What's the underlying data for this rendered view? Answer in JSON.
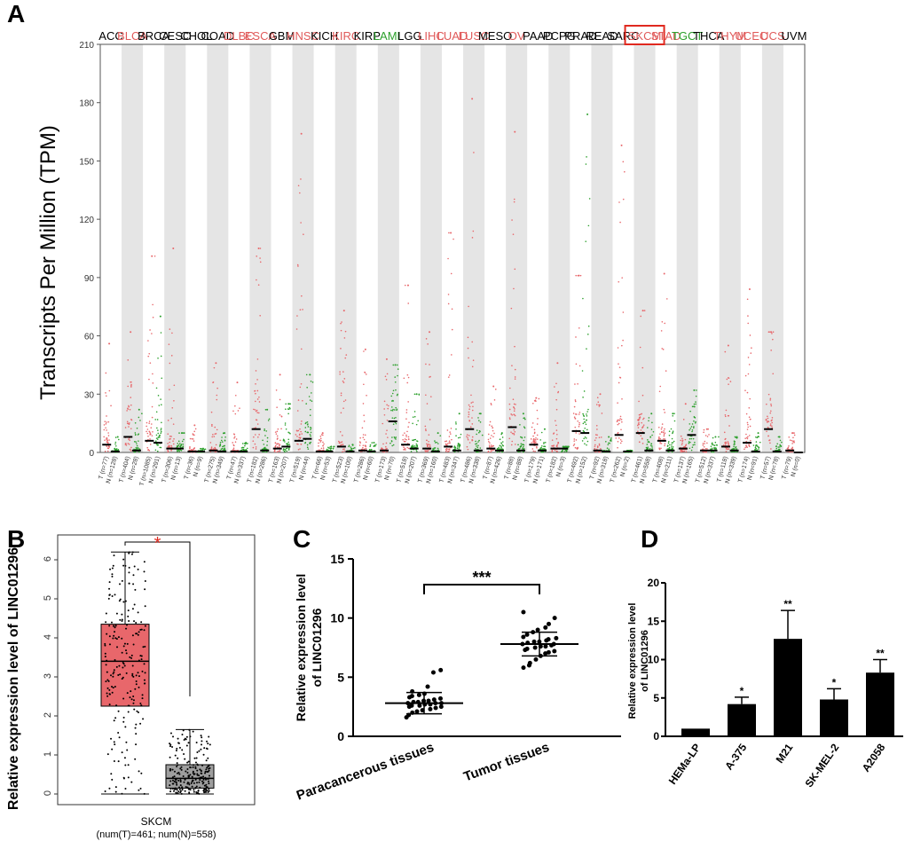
{
  "figure": {
    "panel_labels": [
      "A",
      "B",
      "C",
      "D"
    ]
  },
  "colors": {
    "tumor": "#e8676b",
    "normal": "#2ca02c",
    "text_red": "#e05a5a",
    "text_green": "#2ca02c",
    "text_black": "#000000",
    "stripe": "#e5e5e5",
    "bar": "#000000",
    "box_tumor": "#e8676b",
    "box_normal": "#9e9e9e",
    "star_red": "#e0291f",
    "highlight": "#e0291f"
  },
  "chart_data": [
    {
      "panel": "A",
      "type": "scatter",
      "ylabel": "Transcripts Per Million (TPM)",
      "ylim": [
        0,
        210
      ],
      "yticks": [
        0,
        30,
        60,
        90,
        120,
        150,
        180,
        210
      ],
      "highlight": "SKCM",
      "cancers": [
        {
          "name": "ACC",
          "color": "black",
          "tumor_n": "T (n=77)",
          "normal_n": "N (n=128)",
          "tumor_median": 4,
          "normal_median": 0.5,
          "tumor_max": 56,
          "normal_max": 8
        },
        {
          "name": "BLCA",
          "color": "red",
          "tumor_n": "T (n=404)",
          "normal_n": "N (n=28)",
          "tumor_median": 8,
          "normal_median": 1,
          "tumor_max": 62,
          "normal_max": 22
        },
        {
          "name": "BRCA",
          "color": "black",
          "tumor_n": "T (n=1085)",
          "normal_n": "N (n=291)",
          "tumor_median": 6,
          "normal_median": 5,
          "tumor_max": 101,
          "normal_max": 70
        },
        {
          "name": "CESC",
          "color": "black",
          "tumor_n": "T (n=306)",
          "normal_n": "N (n=13)",
          "tumor_median": 2,
          "normal_median": 2,
          "tumor_max": 105,
          "normal_max": 10
        },
        {
          "name": "CHOL",
          "color": "black",
          "tumor_n": "T (n=36)",
          "normal_n": "N (n=9)",
          "tumor_median": 0.5,
          "normal_median": 0.5,
          "tumor_max": 14,
          "normal_max": 2
        },
        {
          "name": "COAD",
          "color": "black",
          "tumor_n": "T (n=275)",
          "normal_n": "N (n=349)",
          "tumor_median": 1,
          "normal_median": 0.5,
          "tumor_max": 46,
          "normal_max": 10
        },
        {
          "name": "DLBC",
          "color": "red",
          "tumor_n": "T (n=47)",
          "normal_n": "N (n=337)",
          "tumor_median": 0.5,
          "normal_median": 0.5,
          "tumor_max": 36,
          "normal_max": 5
        },
        {
          "name": "ESCA",
          "color": "red",
          "tumor_n": "T (n=182)",
          "normal_n": "N (n=286)",
          "tumor_median": 12,
          "normal_median": 1,
          "tumor_max": 105,
          "normal_max": 22
        },
        {
          "name": "GBM",
          "color": "black",
          "tumor_n": "T (n=163)",
          "normal_n": "N (n=207)",
          "tumor_median": 2,
          "normal_median": 3,
          "tumor_max": 40,
          "normal_max": 25
        },
        {
          "name": "HNSC",
          "color": "red",
          "tumor_n": "T (n=519)",
          "normal_n": "N (n=44)",
          "tumor_median": 6,
          "normal_median": 7,
          "tumor_max": 164,
          "normal_max": 40
        },
        {
          "name": "KICH",
          "color": "black",
          "tumor_n": "T (n=66)",
          "normal_n": "N (n=53)",
          "tumor_median": 0.5,
          "normal_median": 0.5,
          "tumor_max": 10,
          "normal_max": 3
        },
        {
          "name": "KIRC",
          "color": "red",
          "tumor_n": "T (n=523)",
          "normal_n": "N (n=100)",
          "tumor_median": 3,
          "normal_median": 0.5,
          "tumor_max": 73,
          "normal_max": 4
        },
        {
          "name": "KIRP",
          "color": "black",
          "tumor_n": "T (n=286)",
          "normal_n": "N (n=60)",
          "tumor_median": 1,
          "normal_median": 0.5,
          "tumor_max": 53,
          "normal_max": 5
        },
        {
          "name": "LAML",
          "color": "green",
          "tumor_n": "T (n=173)",
          "normal_n": "N (n=70)",
          "tumor_median": 1,
          "normal_median": 16,
          "tumor_max": 48,
          "normal_max": 45
        },
        {
          "name": "LGG",
          "color": "black",
          "tumor_n": "T (n=518)",
          "normal_n": "N (n=207)",
          "tumor_median": 4,
          "normal_median": 2,
          "tumor_max": 86,
          "normal_max": 30
        },
        {
          "name": "LIHC",
          "color": "red",
          "tumor_n": "T (n=369)",
          "normal_n": "N (n=160)",
          "tumor_median": 2,
          "normal_median": 0.5,
          "tumor_max": 62,
          "normal_max": 10
        },
        {
          "name": "LUAD",
          "color": "red",
          "tumor_n": "T (n=483)",
          "normal_n": "N (n=347)",
          "tumor_median": 3,
          "normal_median": 1,
          "tumor_max": 113,
          "normal_max": 20
        },
        {
          "name": "LUSC",
          "color": "red",
          "tumor_n": "T (n=486)",
          "normal_n": "N (n=338)",
          "tumor_median": 12,
          "normal_median": 1,
          "tumor_max": 182,
          "normal_max": 20
        },
        {
          "name": "MESO",
          "color": "black",
          "tumor_n": "T (n=87)",
          "normal_n": "N (n=426)",
          "tumor_median": 2,
          "normal_median": 1,
          "tumor_max": 34,
          "normal_max": 10
        },
        {
          "name": "OV",
          "color": "red",
          "tumor_n": "T (n=88)",
          "normal_n": "N (n=88)",
          "tumor_median": 13,
          "normal_median": 1,
          "tumor_max": 165,
          "normal_max": 20
        },
        {
          "name": "PAAD",
          "color": "black",
          "tumor_n": "T (n=179)",
          "normal_n": "N (n=171)",
          "tumor_median": 4,
          "normal_median": 1,
          "tumor_max": 28,
          "normal_max": 12
        },
        {
          "name": "PCPG",
          "color": "black",
          "tumor_n": "T (n=182)",
          "normal_n": "N (n=3)",
          "tumor_median": 2,
          "normal_median": 2,
          "tumor_max": 46,
          "normal_max": 3
        },
        {
          "name": "PRAD",
          "color": "black",
          "tumor_n": "T (n=492)",
          "normal_n": "N (n=152)",
          "tumor_median": 11,
          "normal_median": 10,
          "tumor_max": 91,
          "normal_max": 174
        },
        {
          "name": "READ",
          "color": "black",
          "tumor_n": "T (n=92)",
          "normal_n": "N (n=318)",
          "tumor_median": 1,
          "normal_median": 0.5,
          "tumor_max": 30,
          "normal_max": 8
        },
        {
          "name": "SARC",
          "color": "black",
          "tumor_n": "T (n=262)",
          "normal_n": "N (n=2)",
          "tumor_median": 9,
          "normal_median": 0.5,
          "tumor_max": 158,
          "normal_max": 1
        },
        {
          "name": "SKCM",
          "color": "red",
          "tumor_n": "T (n=461)",
          "normal_n": "N (n=558)",
          "tumor_median": 10,
          "normal_median": 1,
          "tumor_max": 73,
          "normal_max": 20
        },
        {
          "name": "STAD",
          "color": "red",
          "tumor_n": "T (n=408)",
          "normal_n": "N (n=211)",
          "tumor_median": 6,
          "normal_median": 1,
          "tumor_max": 92,
          "normal_max": 20
        },
        {
          "name": "TGCT",
          "color": "green",
          "tumor_n": "T (n=137)",
          "normal_n": "N (n=165)",
          "tumor_median": 2,
          "normal_median": 9,
          "tumor_max": 25,
          "normal_max": 32
        },
        {
          "name": "THCA",
          "color": "black",
          "tumor_n": "T (n=512)",
          "normal_n": "N (n=337)",
          "tumor_median": 1,
          "normal_median": 1,
          "tumor_max": 12,
          "normal_max": 8
        },
        {
          "name": "THYM",
          "color": "red",
          "tumor_n": "T (n=118)",
          "normal_n": "N (n=339)",
          "tumor_median": 3,
          "normal_median": 1,
          "tumor_max": 55,
          "normal_max": 8
        },
        {
          "name": "UCEC",
          "color": "red",
          "tumor_n": "T (n=174)",
          "normal_n": "N (n=91)",
          "tumor_median": 5,
          "normal_median": 0.5,
          "tumor_max": 84,
          "normal_max": 10
        },
        {
          "name": "UCS",
          "color": "red",
          "tumor_n": "T (n=57)",
          "normal_n": "N (n=78)",
          "tumor_median": 12,
          "normal_median": 0.5,
          "tumor_max": 62,
          "normal_max": 8
        },
        {
          "name": "UVM",
          "color": "black",
          "tumor_n": "T (n=79)",
          "normal_n": "N (n=0)",
          "tumor_median": 1,
          "normal_median": 0,
          "tumor_max": 10,
          "normal_max": 0
        }
      ]
    },
    {
      "panel": "B",
      "type": "box",
      "ylabel": "Relative expression level of LINC01296",
      "xlabel": "SKCM",
      "sublabel": "(num(T)=461; num(N)=558)",
      "ylim": [
        0,
        6.5
      ],
      "yticks": [
        0,
        1,
        2,
        3,
        4,
        5,
        6
      ],
      "significance": "*",
      "groups": [
        {
          "name": "Tumor",
          "min": 0,
          "q1": 2.25,
          "median": 3.4,
          "q3": 4.35,
          "max": 6.2,
          "n": 461
        },
        {
          "name": "Normal",
          "min": 0,
          "q1": 0.15,
          "median": 0.4,
          "q3": 0.75,
          "max": 1.65,
          "n": 558
        }
      ]
    },
    {
      "panel": "C",
      "type": "scatter",
      "ylabel": "Relative expression level of LINC01296",
      "ylim": [
        0,
        15
      ],
      "yticks": [
        0,
        5,
        10,
        15
      ],
      "categories": [
        "Paracancerous tissues",
        "Tumor tissues"
      ],
      "significance": "***",
      "series": [
        {
          "name": "Paracancerous tissues",
          "mean": 2.8,
          "sd": 0.9,
          "values": [
            1.8,
            2.0,
            2.1,
            2.2,
            2.3,
            2.4,
            2.5,
            2.5,
            2.6,
            2.6,
            2.7,
            2.7,
            2.8,
            2.8,
            2.8,
            2.9,
            2.9,
            3.0,
            3.0,
            3.1,
            3.2,
            3.3,
            3.4,
            3.5,
            3.6,
            4.2,
            5.4,
            5.6,
            1.6,
            3.8
          ]
        },
        {
          "name": "Tumor tissues",
          "mean": 7.8,
          "sd": 1.0,
          "values": [
            5.8,
            6.2,
            6.5,
            6.8,
            7.0,
            7.1,
            7.2,
            7.3,
            7.4,
            7.5,
            7.6,
            7.6,
            7.7,
            7.8,
            7.8,
            7.9,
            8.0,
            8.0,
            8.1,
            8.2,
            8.3,
            8.4,
            8.6,
            8.8,
            9.0,
            9.2,
            9.5,
            10.0,
            10.5,
            6.0
          ]
        }
      ]
    },
    {
      "panel": "D",
      "type": "bar",
      "ylabel": "Relative expression level of LINC01296",
      "ylim": [
        0,
        20
      ],
      "yticks": [
        0,
        5,
        10,
        15,
        20
      ],
      "categories": [
        "HEMa-LP",
        "A-375",
        "M21",
        "SK-MEL-2",
        "A2058"
      ],
      "values": [
        1.0,
        4.2,
        12.7,
        4.8,
        8.3
      ],
      "errors": [
        0,
        0.9,
        3.7,
        1.4,
        1.7
      ],
      "significance": [
        "",
        "*",
        "**",
        "*",
        "**"
      ]
    }
  ]
}
